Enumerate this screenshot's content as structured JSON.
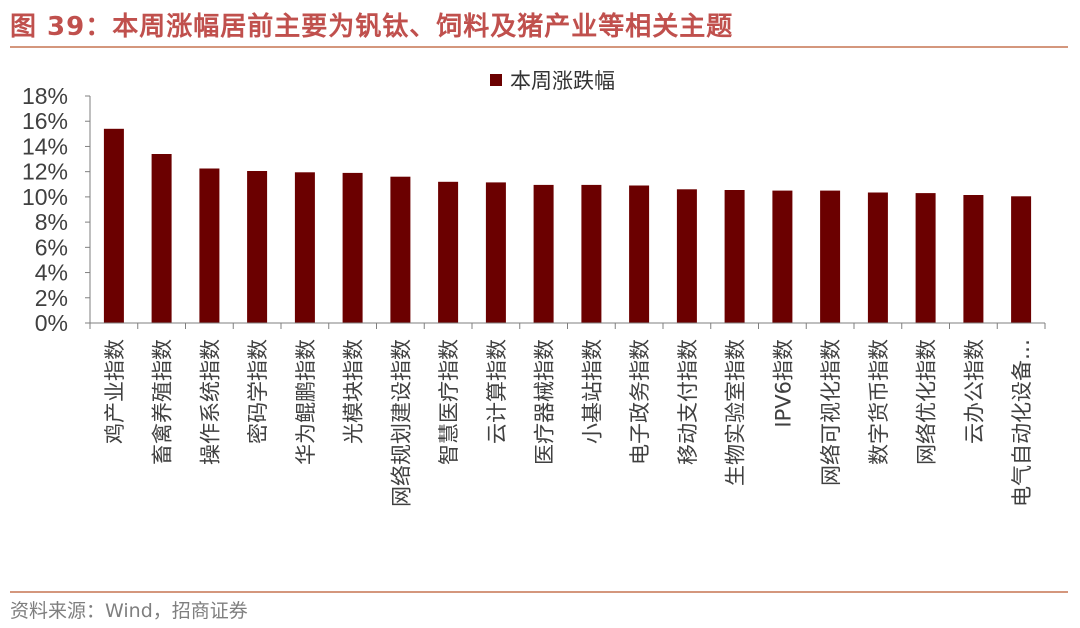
{
  "header": {
    "title": "图 39：本周涨幅居前主要为钒钛、饲料及猪产业等相关主题"
  },
  "footer": {
    "source": "资料来源：Wind，招商证券"
  },
  "colors": {
    "bar": "#6b0000",
    "accent": "#c0504d"
  },
  "chart_data": {
    "type": "bar",
    "title": "",
    "xlabel": "",
    "ylabel": "",
    "legend": [
      "本周涨跌幅"
    ],
    "legend_position": "top-center",
    "ylim": [
      0,
      18
    ],
    "yticks": [
      "18%",
      "16%",
      "14%",
      "12%",
      "10%",
      "8%",
      "6%",
      "4%",
      "2%",
      "0%"
    ],
    "categories": [
      "鸡产业指数",
      "畜禽养殖指数",
      "操作系统指数",
      "密码学指数",
      "华为鲲鹏指数",
      "光模块指数",
      "网络规划建设指数",
      "智慧医疗指数",
      "云计算指数",
      "医疗器械指数",
      "小基站指数",
      "电子政务指数",
      "移动支付指数",
      "生物实验室指数",
      "IPV6指数",
      "网络可视化指数",
      "数字货币指数",
      "网络优化指数",
      "云办公指数",
      "电气自动化设备…"
    ],
    "series": [
      {
        "name": "本周涨跌幅",
        "values": [
          15.4,
          13.4,
          12.25,
          12.05,
          11.95,
          11.9,
          11.6,
          11.2,
          11.15,
          10.95,
          10.95,
          10.9,
          10.6,
          10.55,
          10.5,
          10.5,
          10.35,
          10.3,
          10.15,
          10.05
        ]
      }
    ]
  }
}
